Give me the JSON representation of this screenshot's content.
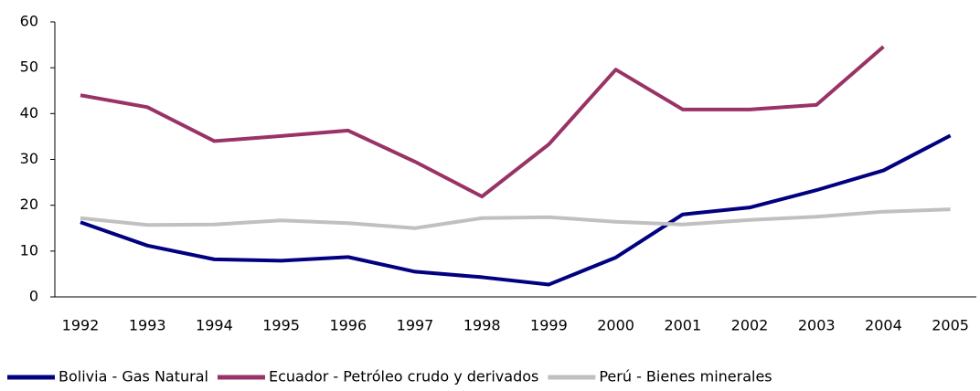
{
  "chart_data": {
    "type": "line",
    "categories": [
      "1992",
      "1993",
      "1994",
      "1995",
      "1996",
      "1997",
      "1998",
      "1999",
      "2000",
      "2001",
      "2002",
      "2003",
      "2004",
      "2005"
    ],
    "series": [
      {
        "name": "Bolivia - Gas Natural",
        "color": "#000080",
        "values": [
          16.3,
          11.2,
          8.2,
          7.9,
          8.7,
          5.5,
          4.3,
          2.7,
          8.6,
          18,
          19.5,
          23.3,
          27.6,
          35.2
        ]
      },
      {
        "name": "Ecuador - Petróleo crudo y derivados",
        "color": "#993366",
        "values": [
          44,
          41.4,
          34,
          35.1,
          36.3,
          29.5,
          21.9,
          33.3,
          49.6,
          40.9,
          40.9,
          41.9,
          54.6,
          null
        ]
      },
      {
        "name": "Perú - Bienes minerales",
        "color": "#c0c0c0",
        "values": [
          17.2,
          15.7,
          15.8,
          16.7,
          16.1,
          15,
          17.2,
          17.4,
          16.4,
          15.8,
          16.8,
          17.5,
          18.6,
          19.1
        ]
      }
    ],
    "ylim": [
      0,
      60
    ],
    "yticks": [
      0,
      10,
      20,
      30,
      40,
      50,
      60
    ],
    "grid": false,
    "legend": "bottom"
  }
}
